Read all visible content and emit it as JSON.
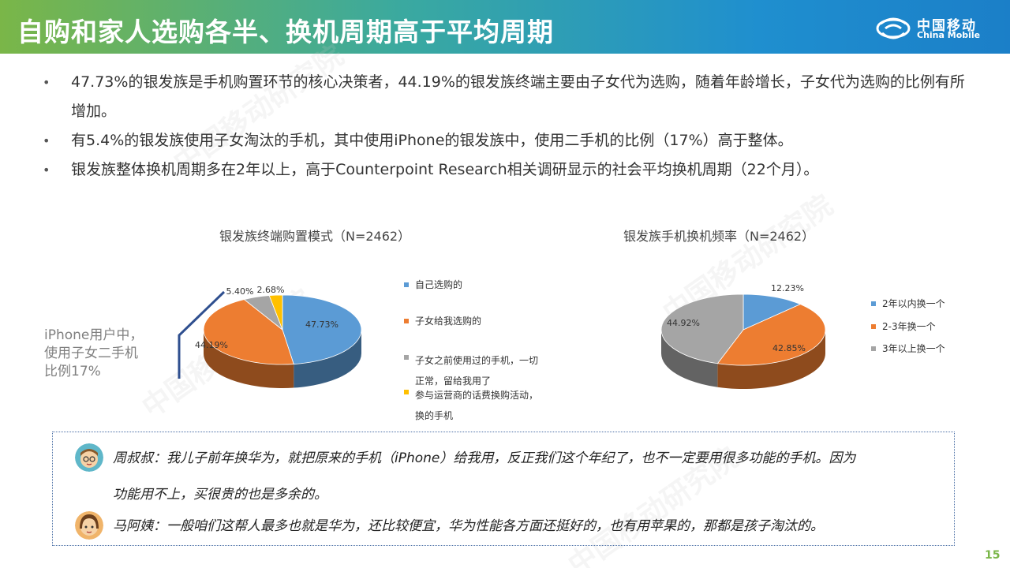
{
  "header": {
    "title": "自购和家人选购各半、换机周期高于平均周期"
  },
  "logo": {
    "cn": "中国移动",
    "en": "China Mobile"
  },
  "bullets": [
    "47.73%的银发族是手机购置环节的核心决策者，44.19%的银发族终端主要由子女代为选购，随着年龄增长，子女代为选购的比例有所增加。",
    "有5.4%的银发族使用子女淘汰的手机，其中使用iPhone的银发族中，使用二手机的比例（17%）高于整体。",
    "银发族整体换机周期多在2年以上，高于Counterpoint Research相关调研显示的社会平均换机周期（22个月）。"
  ],
  "side_note": {
    "line1": "iPhone用户中，",
    "line2": "使用子女二手机",
    "line3": "比例17%"
  },
  "chart_data": [
    {
      "type": "pie",
      "title": "银发族终端购置模式（N=2462）",
      "legend_position": "right",
      "slices": [
        {
          "label": "自己选购的",
          "value": 47.73,
          "value_label": "47.73%",
          "color": "#5b9bd5"
        },
        {
          "label": "子女给我选购的",
          "value": 44.19,
          "value_label": "44.19%",
          "color": "#ed7d31"
        },
        {
          "label": "子女之前使用过的手机，一切正常，留给我用了",
          "value": 5.4,
          "value_label": "5.40%",
          "color": "#a5a5a5"
        },
        {
          "label": "参与运营商的话费换购活动，换的手机",
          "value": 2.68,
          "value_label": "2.68%",
          "color": "#ffc000"
        }
      ]
    },
    {
      "type": "pie",
      "title": "银发族手机换机频率（N=2462）",
      "legend_position": "right",
      "slices": [
        {
          "label": "2年以内换一个",
          "value": 12.23,
          "value_label": "12.23%",
          "color": "#5b9bd5"
        },
        {
          "label": "2-3年换一个",
          "value": 42.85,
          "value_label": "42.85%",
          "color": "#ed7d31"
        },
        {
          "label": "3年以上换一个",
          "value": 44.92,
          "value_label": "44.92%",
          "color": "#a5a5a5"
        }
      ]
    }
  ],
  "legend1": {
    "l0": "自己选购的",
    "l1": "子女给我选购的",
    "l2a": "子女之前使用过的手机，一切",
    "l2b": "正常，留给我用了",
    "l3a": "参与运营商的话费换购活动，",
    "l3b": "换的手机"
  },
  "quotes": [
    {
      "line1": "周叔叔：我儿子前年换华为，就把原来的手机（iPhone）给我用，反正我们这个年纪了，也不一定要用很多功能的手机。因为",
      "line2": "功能用不上，买很贵的也是多余的。"
    },
    {
      "line1": "马阿姨：一般咱们这帮人最多也就是华为，还比较便宜，华为性能各方面还挺好的，也有用苹果的，那都是孩子淘汰的。"
    }
  ],
  "page_number": "15"
}
